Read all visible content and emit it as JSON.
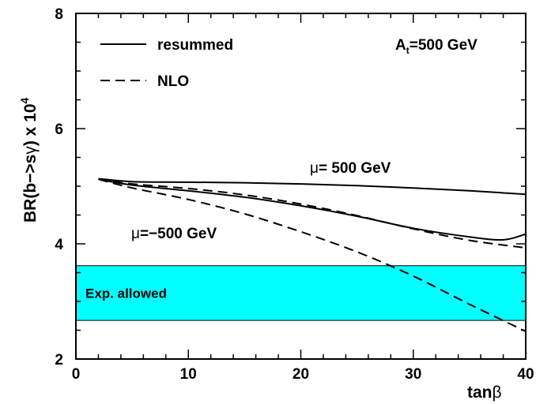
{
  "chart_data": {
    "type": "line",
    "xlabel_main": "tan",
    "xlabel_greek": "β",
    "ylabel_prefix": "BR(b−>s",
    "ylabel_greek": "γ",
    "ylabel_suffix": ") x 10",
    "ylabel_exp": "4",
    "xlim": [
      0,
      40
    ],
    "ylim": [
      2,
      8
    ],
    "xticks": [
      0,
      10,
      20,
      30,
      40
    ],
    "yticks": [
      2,
      4,
      6,
      8
    ],
    "grid": false,
    "legend_position": "top-left",
    "legend": [
      {
        "label": "resummed",
        "style": "solid"
      },
      {
        "label": "NLO",
        "style": "dashed"
      }
    ],
    "annotations": {
      "at_prefix": "A",
      "at_sub": "t",
      "at_suffix": "=500 GeV",
      "mu_pos_greek": "μ",
      "mu_pos_text": "= 500 GeV",
      "mu_neg_greek": "μ",
      "mu_neg_text": "=−500 GeV",
      "band_label": "Exp. allowed"
    },
    "band": {
      "y_low": 2.67,
      "y_high": 3.62,
      "color": "#00ffff"
    },
    "series": [
      {
        "style": "solid",
        "group": "mu=500 GeV",
        "x": [
          2,
          5,
          10,
          15,
          20,
          25,
          30,
          35,
          40
        ],
        "y": [
          5.13,
          5.08,
          5.07,
          5.06,
          5.04,
          5.01,
          4.97,
          4.92,
          4.86
        ]
      },
      {
        "style": "solid",
        "group": "mu=-500 GeV",
        "x": [
          2,
          5,
          10,
          15,
          20,
          25,
          30,
          35,
          38,
          40
        ],
        "y": [
          5.12,
          5.02,
          4.92,
          4.81,
          4.66,
          4.48,
          4.27,
          4.12,
          4.07,
          4.17
        ]
      },
      {
        "style": "dashed",
        "group": "mu=500 GeV",
        "x": [
          2,
          5,
          10,
          15,
          20,
          25,
          30,
          35,
          40
        ],
        "y": [
          5.12,
          5.04,
          4.96,
          4.85,
          4.69,
          4.49,
          4.26,
          4.06,
          3.93
        ]
      },
      {
        "style": "dashed",
        "group": "mu=-500 GeV",
        "x": [
          2,
          5,
          10,
          15,
          20,
          25,
          30,
          35,
          40
        ],
        "y": [
          5.12,
          4.97,
          4.77,
          4.52,
          4.21,
          3.86,
          3.44,
          2.95,
          2.48
        ]
      }
    ]
  }
}
